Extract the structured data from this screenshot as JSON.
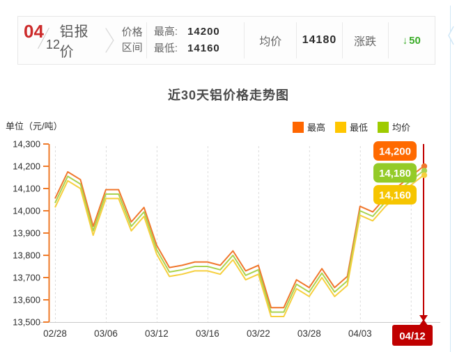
{
  "header": {
    "date_month": "04",
    "date_day": "12",
    "product_label": "铝报价",
    "range_label_line1": "价格",
    "range_label_line2": "区间",
    "high_label": "最高:",
    "high_value": "14200",
    "low_label": "最低:",
    "low_value": "14160",
    "avg_label": "均价",
    "avg_value": "14180",
    "change_label": "涨跌",
    "change_arrow": "↓",
    "change_value": "50",
    "change_color": "#3aac28"
  },
  "chart": {
    "title": "近30天铝价格走势图",
    "unit_label": "单位（元/吨）",
    "legend": [
      {
        "label": "最高",
        "color": "#ff6600"
      },
      {
        "label": "最低",
        "color": "#ffc600"
      },
      {
        "label": "均价",
        "color": "#9ecb00"
      }
    ],
    "end_badges": [
      {
        "text": "14,200",
        "color": "#ff6a00"
      },
      {
        "text": "14,180",
        "color": "#94cb28"
      },
      {
        "text": "14,160",
        "color": "#f6c500"
      }
    ],
    "x_badge": "04/12",
    "accent_red": "#c00000",
    "axis_orange": "#ef7b2a",
    "grid_color": "#dcdcdc",
    "xaxis_color": "#c9c9c9"
  },
  "chart_data": {
    "type": "line",
    "title": "近30天铝价格走势图",
    "ylabel": "单位（元/吨）",
    "ylim": [
      13500,
      14300
    ],
    "y_tick_step": 100,
    "grid": "vertical-dashed",
    "legend_position": "top-right",
    "x_labels": [
      "02/28",
      "03/06",
      "03/12",
      "03/16",
      "03/22",
      "03/28",
      "04/03",
      "04/12"
    ],
    "x_label_indices": [
      0,
      4,
      8,
      12,
      16,
      20,
      24,
      28
    ],
    "highlight_index": 29,
    "series": [
      {
        "name": "最高",
        "color": "#f0762b",
        "values": [
          14055,
          14175,
          14140,
          13930,
          14095,
          14095,
          13950,
          14015,
          13845,
          13745,
          13755,
          13770,
          13770,
          13755,
          13820,
          13730,
          13755,
          13565,
          13565,
          13690,
          13655,
          13740,
          13655,
          13705,
          14020,
          13995,
          14060,
          14110,
          14155,
          14200
        ]
      },
      {
        "name": "均价",
        "color": "#a9d34f",
        "values": [
          14035,
          14155,
          14120,
          13910,
          14075,
          14075,
          13930,
          13995,
          13825,
          13725,
          13735,
          13750,
          13750,
          13735,
          13800,
          13710,
          13735,
          13545,
          13545,
          13670,
          13635,
          13720,
          13635,
          13685,
          14000,
          13975,
          14040,
          14090,
          14135,
          14180
        ]
      },
      {
        "name": "最低",
        "color": "#f6cf3d",
        "values": [
          14015,
          14135,
          14100,
          13890,
          14055,
          14055,
          13910,
          13975,
          13805,
          13705,
          13715,
          13730,
          13730,
          13715,
          13780,
          13690,
          13715,
          13525,
          13525,
          13650,
          13615,
          13700,
          13615,
          13665,
          13980,
          13955,
          14020,
          14070,
          14115,
          14160
        ]
      }
    ]
  }
}
